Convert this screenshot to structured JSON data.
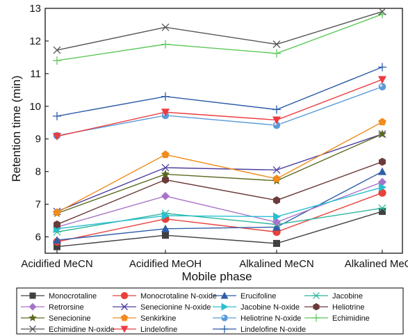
{
  "chart_data": {
    "type": "line",
    "title": "",
    "xlabel": "Mobile phase",
    "ylabel": "Retention time (min)",
    "categories": [
      "Acidified MeCN",
      "Acidified MeOH",
      "Alkalined MeCN",
      "Alkalined MeOH"
    ],
    "ylim": [
      5.5,
      13
    ],
    "yticks": [
      6,
      7,
      8,
      9,
      10,
      11,
      12,
      13
    ],
    "grid": false,
    "legend_position": "bottom",
    "series": [
      {
        "name": "Monocrotaline",
        "values": [
          5.7,
          6.05,
          5.8,
          6.78
        ],
        "color": "#404040",
        "marker": "square"
      },
      {
        "name": "Monocrotaline N-oxide",
        "values": [
          5.85,
          6.55,
          6.15,
          7.35
        ],
        "color": "#e8403a",
        "marker": "circle"
      },
      {
        "name": "Erucifoline",
        "values": [
          5.9,
          6.25,
          6.3,
          8.0
        ],
        "color": "#2f5ea8",
        "marker": "triangle-up"
      },
      {
        "name": "Jacobine",
        "values": [
          6.15,
          6.72,
          6.38,
          6.88
        ],
        "color": "#2ab59a",
        "marker": "asterisk"
      },
      {
        "name": "Retrorsine",
        "values": [
          6.3,
          7.25,
          6.45,
          7.68
        ],
        "color": "#a874c8",
        "marker": "diamond"
      },
      {
        "name": "Senecionine N-oxide",
        "values": [
          6.78,
          8.12,
          8.05,
          9.15
        ],
        "color": "#4b3fa0",
        "marker": "x"
      },
      {
        "name": "Jacobine N-oxide",
        "values": [
          6.25,
          6.65,
          6.62,
          7.52
        ],
        "color": "#28c0d0",
        "marker": "triangle-right"
      },
      {
        "name": "Heliotrine",
        "values": [
          6.38,
          7.75,
          7.12,
          8.3
        ],
        "color": "#6b3a3a",
        "marker": "hexagon"
      },
      {
        "name": "Senecionine",
        "values": [
          6.72,
          7.92,
          7.72,
          9.15
        ],
        "color": "#5a6a20",
        "marker": "star"
      },
      {
        "name": "Senkirkine",
        "values": [
          6.75,
          8.52,
          7.78,
          9.52
        ],
        "color": "#f08c1e",
        "marker": "pentagon"
      },
      {
        "name": "Heliotrine N-oxide",
        "values": [
          9.1,
          9.72,
          9.42,
          10.6
        ],
        "color": "#5a9bd8",
        "marker": "circle-shaded"
      },
      {
        "name": "Echimidine",
        "values": [
          11.4,
          11.9,
          11.62,
          12.82
        ],
        "color": "#5cc85a",
        "marker": "plus"
      },
      {
        "name": "Echimidine N-oxide",
        "values": [
          11.72,
          12.42,
          11.9,
          12.9
        ],
        "color": "#555555",
        "marker": "x"
      },
      {
        "name": "Lindelofine",
        "values": [
          9.08,
          9.82,
          9.58,
          10.82
        ],
        "color": "#ec3c40",
        "marker": "triangle-down"
      },
      {
        "name": "Lindelofine N-oxide",
        "values": [
          9.7,
          10.3,
          9.9,
          11.2
        ],
        "color": "#2a5aa8",
        "marker": "plus"
      }
    ]
  }
}
